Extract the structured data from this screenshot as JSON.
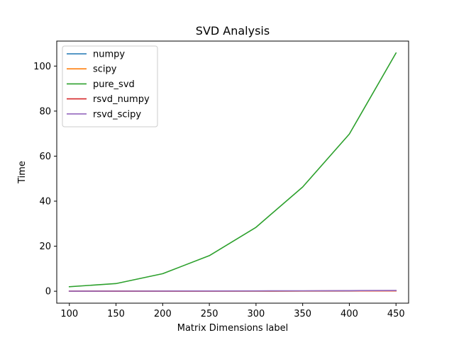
{
  "chart_data": {
    "type": "line",
    "title": "SVD Analysis",
    "xlabel": "Matrix Dimensions label",
    "ylabel": "Time",
    "x": [
      100,
      150,
      200,
      250,
      300,
      350,
      400,
      450
    ],
    "xlim": [
      86.5,
      463.5
    ],
    "ylim": [
      -5.3,
      111.1
    ],
    "x_ticks": [
      100,
      150,
      200,
      250,
      300,
      350,
      400,
      450
    ],
    "y_ticks": [
      0,
      20,
      40,
      60,
      80,
      100
    ],
    "grid": false,
    "legend_position": "upper-left",
    "series": [
      {
        "name": "numpy",
        "color": "#1f77b4",
        "values": [
          0.01,
          0.02,
          0.03,
          0.05,
          0.07,
          0.09,
          0.12,
          0.15
        ]
      },
      {
        "name": "scipy",
        "color": "#ff7f0e",
        "values": [
          0.01,
          0.02,
          0.03,
          0.05,
          0.07,
          0.1,
          0.13,
          0.16
        ]
      },
      {
        "name": "pure_svd",
        "color": "#2ca02c",
        "values": [
          2.0,
          3.4,
          7.8,
          15.8,
          28.4,
          46.3,
          69.8,
          105.8
        ]
      },
      {
        "name": "rsvd_numpy",
        "color": "#d62728",
        "values": [
          0.02,
          0.03,
          0.05,
          0.07,
          0.1,
          0.13,
          0.17,
          0.22
        ]
      },
      {
        "name": "rsvd_scipy",
        "color": "#9467bd",
        "values": [
          0.03,
          0.05,
          0.08,
          0.12,
          0.16,
          0.21,
          0.27,
          0.35
        ]
      }
    ]
  }
}
